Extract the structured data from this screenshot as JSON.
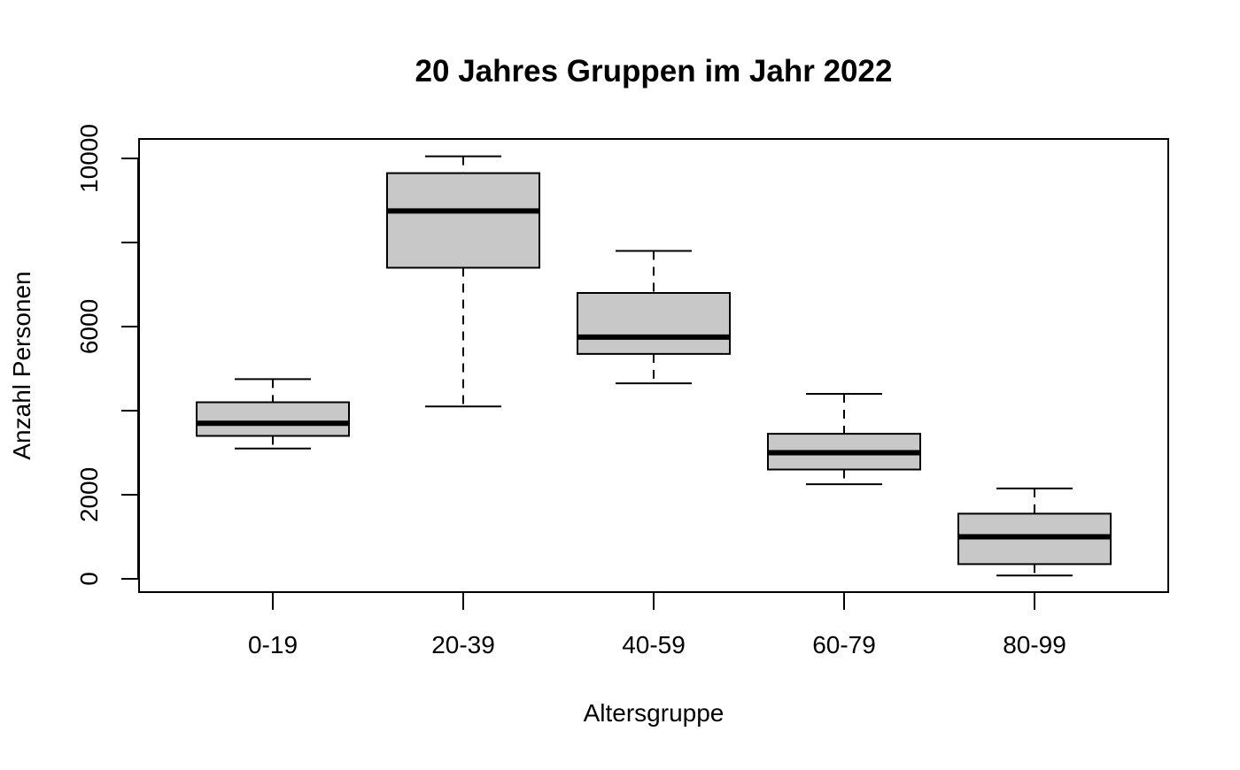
{
  "chart_data": {
    "type": "boxplot",
    "title": "20 Jahres Gruppen im Jahr 2022",
    "xlabel": "Altersgruppe",
    "ylabel": "Anzahl Personen",
    "categories": [
      "0-19",
      "20-39",
      "40-59",
      "60-79",
      "80-99"
    ],
    "boxes": [
      {
        "whisker_low": 3100,
        "q1": 3400,
        "median": 3700,
        "q3": 4200,
        "whisker_high": 4750
      },
      {
        "whisker_low": 4100,
        "q1": 7400,
        "median": 8750,
        "q3": 9650,
        "whisker_high": 10050
      },
      {
        "whisker_low": 4650,
        "q1": 5350,
        "median": 5750,
        "q3": 6800,
        "whisker_high": 7800
      },
      {
        "whisker_low": 2250,
        "q1": 2600,
        "median": 3000,
        "q3": 3450,
        "whisker_high": 4400
      },
      {
        "whisker_low": 80,
        "q1": 350,
        "median": 1000,
        "q3": 1550,
        "whisker_high": 2150
      }
    ],
    "yticks": [
      0,
      2000,
      6000,
      10000
    ],
    "minor_yticks": [
      4000,
      8000
    ],
    "ylim": [
      -300,
      10500
    ],
    "box_fill": "#c8c8c8",
    "grid": false,
    "legend": "none"
  }
}
